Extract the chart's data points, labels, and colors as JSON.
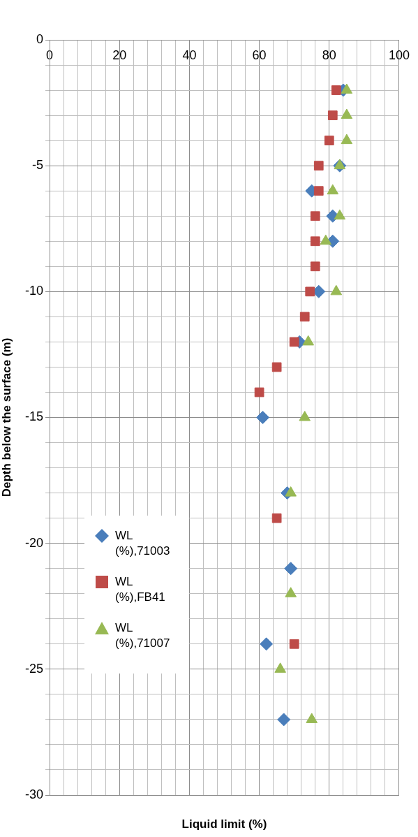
{
  "chart_data": {
    "type": "scatter",
    "xlabel": "Liquid limit (%)",
    "ylabel": "Depth below the surface (m)",
    "series": [
      {
        "name": "WL (%),71003",
        "color": "#4a7ebb",
        "marker": "diamond",
        "x": [
          84,
          83,
          75,
          81,
          81,
          77,
          71.5,
          61,
          68,
          69,
          62,
          67
        ],
        "values": [
          -2,
          -5,
          -6,
          -7,
          -8,
          -10,
          -12,
          -15,
          -18,
          -21,
          -24,
          -27
        ]
      },
      {
        "name": "WL (%),FB41",
        "color": "#be4b48",
        "marker": "square",
        "x": [
          82,
          81,
          80,
          77,
          77,
          76,
          76,
          76,
          74.5,
          73,
          70,
          65,
          60,
          65,
          70
        ],
        "values": [
          -2,
          -3,
          -4,
          -5,
          -6,
          -7,
          -8,
          -9,
          -10,
          -11,
          -12,
          -13,
          -14,
          -19,
          -24
        ]
      },
      {
        "name": "WL (%),71007",
        "color": "#98b954",
        "marker": "triangle",
        "x": [
          85,
          85,
          85,
          83,
          81,
          83,
          79,
          82,
          74,
          73,
          69,
          69,
          66,
          75
        ],
        "values": [
          -2,
          -3,
          -4,
          -5,
          -6,
          -7,
          -8,
          -10,
          -12,
          -15,
          -18,
          -22,
          -25,
          -27
        ]
      }
    ],
    "xlim": [
      0,
      100
    ],
    "xticks": [
      0,
      {
        "value": 4,
        "label": null
      },
      {
        "value": 8,
        "label": null
      },
      {
        "value": 12,
        "label": null
      },
      {
        "value": 16,
        "label": null
      },
      20,
      {
        "value": 24,
        "label": null
      },
      {
        "value": 28,
        "label": null
      },
      {
        "value": 32,
        "label": null
      },
      {
        "value": 36,
        "label": null
      },
      40,
      {
        "value": 44,
        "label": null
      },
      {
        "value": 48,
        "label": null
      },
      {
        "value": 52,
        "label": null
      },
      {
        "value": 56,
        "label": null
      },
      60,
      {
        "value": 64,
        "label": null
      },
      {
        "value": 68,
        "label": null
      },
      {
        "value": 72,
        "label": null
      },
      {
        "value": 76,
        "label": null
      },
      80,
      {
        "value": 84,
        "label": null
      },
      {
        "value": 88,
        "label": null
      },
      {
        "value": 92,
        "label": null
      },
      {
        "value": 96,
        "label": null
      },
      100
    ],
    "ylim": [
      -30,
      0
    ],
    "yticks": [
      -30,
      {
        "value": -29,
        "label": null
      },
      {
        "value": -28,
        "label": null
      },
      {
        "value": -27,
        "label": null
      },
      {
        "value": -26,
        "label": null
      },
      -25,
      {
        "value": -24,
        "label": null
      },
      {
        "value": -23,
        "label": null
      },
      {
        "value": -22,
        "label": null
      },
      {
        "value": -21,
        "label": null
      },
      -20,
      {
        "value": -19,
        "label": null
      },
      {
        "value": -18,
        "label": null
      },
      {
        "value": -17,
        "label": null
      },
      {
        "value": -16,
        "label": null
      },
      -15,
      {
        "value": -14,
        "label": null
      },
      {
        "value": -13,
        "label": null
      },
      {
        "value": -12,
        "label": null
      },
      {
        "value": -11,
        "label": null
      },
      -10,
      {
        "value": -9,
        "label": null
      },
      {
        "value": -8,
        "label": null
      },
      {
        "value": -7,
        "label": null
      },
      {
        "value": -6,
        "label": null
      },
      -5,
      {
        "value": -4,
        "label": null
      },
      {
        "value": -3,
        "label": null
      },
      {
        "value": -2,
        "label": null
      },
      {
        "value": -1,
        "label": null
      },
      0
    ],
    "grid": true,
    "legend": "bottom left"
  }
}
